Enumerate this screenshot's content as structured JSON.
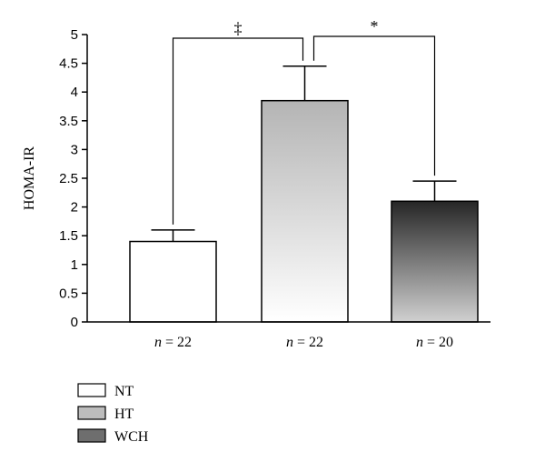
{
  "chart_data": {
    "type": "bar",
    "title": "",
    "xlabel": "",
    "ylabel": "HOMA-IR",
    "ylim": [
      0,
      5
    ],
    "yticks": [
      0,
      0.5,
      1,
      1.5,
      2,
      2.5,
      3,
      3.5,
      4,
      4.5,
      5
    ],
    "ytick_labels": [
      "0",
      "0.5",
      "1",
      "1.5",
      "2",
      "2.5",
      "3",
      "3.5",
      "4",
      "4.5",
      "5"
    ],
    "grid": false,
    "legend_position": "bottom-left",
    "categories": [
      "n = 22",
      "n = 22",
      "n = 20"
    ],
    "series": [
      {
        "name": "NT",
        "value": 1.4,
        "error": 0.2,
        "color": "#ffffff"
      },
      {
        "name": "HT",
        "value": 3.85,
        "error": 0.6,
        "color": "#bdbdbd"
      },
      {
        "name": "WCH",
        "value": 2.1,
        "error": 0.35,
        "color": "#3a3a3a"
      }
    ],
    "annotations": [
      {
        "label": "‡",
        "between": [
          "NT",
          "HT"
        ]
      },
      {
        "label": "*",
        "between": [
          "HT",
          "WCH"
        ]
      }
    ]
  }
}
